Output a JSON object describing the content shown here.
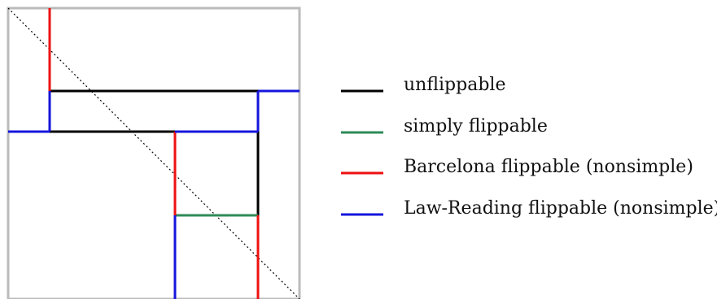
{
  "colors": {
    "unflippable": "#000000",
    "simply": "#2e8b57",
    "barcelona": "#ee1111",
    "law_reading": "#1515dd",
    "frame": "#bbbbbb",
    "diagonal": "#000000"
  },
  "legend": {
    "unflippable": "unflippable",
    "simply": "simply flippable",
    "barcelona": "Barcelona flippable (nonsimple)",
    "law_reading": "Law-Reading flippable (nonsimple)"
  }
}
